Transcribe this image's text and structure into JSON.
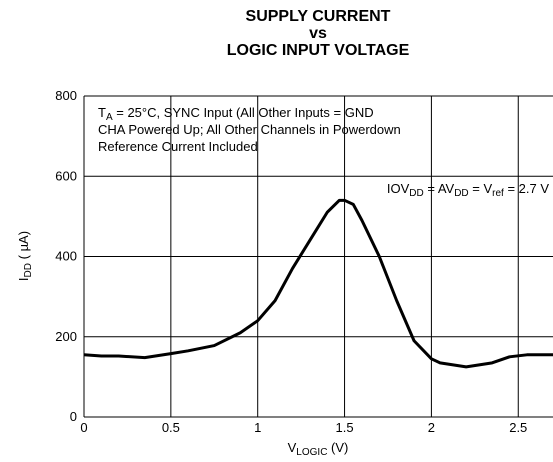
{
  "chart_data": {
    "type": "line",
    "title": [
      "SUPPLY CURRENT",
      "vs",
      "LOGIC INPUT VOLTAGE"
    ],
    "annotations": [
      [
        {
          "text": "T"
        },
        {
          "sub": "A"
        },
        {
          "text": " = 25°C, SYNC Input (All Other Inputs = GND"
        }
      ],
      [
        {
          "text": "CHA Powered Up; All Other Channels in Powerdown"
        }
      ],
      [
        {
          "text": "Reference Current Included"
        }
      ]
    ],
    "curve_label": [
      {
        "text": "IOV"
      },
      {
        "sub": "DD"
      },
      {
        "text": " =  AV"
      },
      {
        "sub": "DD"
      },
      {
        "text": " = V"
      },
      {
        "sub": "ref"
      },
      {
        "text": " = 2.7 V"
      }
    ],
    "x_label": [
      {
        "text": "V"
      },
      {
        "sub": "LOGIC"
      },
      {
        "text": " (V)"
      }
    ],
    "y_label": [
      {
        "text": "I"
      },
      {
        "sub": "DD"
      },
      {
        "text": "  ( µA)"
      }
    ],
    "x": [
      0,
      0.1,
      0.2,
      0.35,
      0.5,
      0.6,
      0.75,
      0.9,
      1.0,
      1.1,
      1.2,
      1.3,
      1.4,
      1.47,
      1.5,
      1.55,
      1.6,
      1.7,
      1.8,
      1.9,
      2.0,
      2.05,
      2.2,
      2.35,
      2.45,
      2.55,
      2.7
    ],
    "series": [
      {
        "color": "#000000",
        "values": [
          155,
          152,
          152,
          148,
          158,
          165,
          178,
          210,
          240,
          290,
          370,
          440,
          510,
          540,
          540,
          530,
          490,
          400,
          290,
          190,
          145,
          135,
          125,
          135,
          150,
          155,
          155
        ]
      }
    ],
    "xlim": [
      0,
      2.7
    ],
    "xticks": [
      0,
      0.5,
      1,
      1.5,
      2,
      2.5
    ],
    "ylim": [
      0,
      800
    ],
    "yticks": [
      0,
      200,
      400,
      600,
      800
    ],
    "grid": true
  }
}
